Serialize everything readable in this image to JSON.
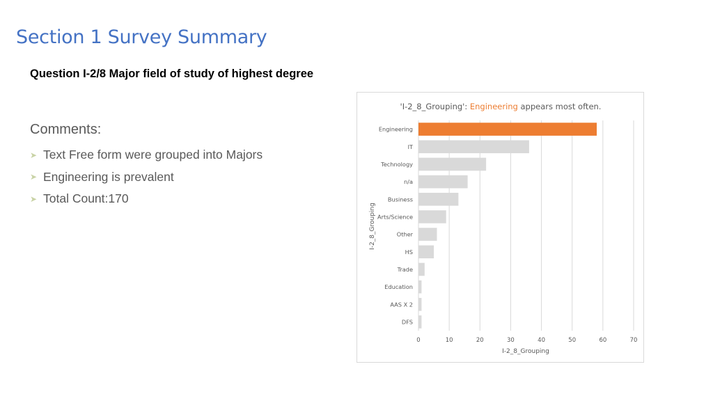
{
  "slide": {
    "title": "Section 1 Survey Summary",
    "question": "Question I-2/8 Major field of study of highest degree",
    "comments_heading": "Comments:",
    "bullets": [
      "Text Free form were grouped into Majors",
      "Engineering is prevalent",
      "Total Count:170"
    ],
    "bullet_icon": "arrow-bullet-icon"
  },
  "colors": {
    "title": "#4472C4",
    "highlight": "#ED7D31",
    "bar": "#D9D9D9",
    "gridline": "#D9D9D9"
  },
  "chart_data": {
    "type": "bar",
    "orientation": "horizontal",
    "title_parts": [
      "'I-2_8_Grouping': ",
      "Engineering",
      " appears most often."
    ],
    "categories": [
      "Engineering",
      "IT",
      "Technology",
      "n/a",
      "Business",
      "Arts/Science",
      "Other",
      "HS",
      "Trade",
      "Education",
      "AAS X 2",
      "DFS"
    ],
    "values": [
      58,
      36,
      22,
      16,
      13,
      9,
      6,
      5,
      2,
      1,
      1,
      1
    ],
    "highlight_category": "Engineering",
    "xlabel": "I-2_8_Grouping",
    "ylabel": "I-2_8_Grouping",
    "xlim": [
      0,
      70
    ],
    "xticks": [
      0,
      10,
      20,
      30,
      40,
      50,
      60,
      70
    ],
    "grid": true
  }
}
